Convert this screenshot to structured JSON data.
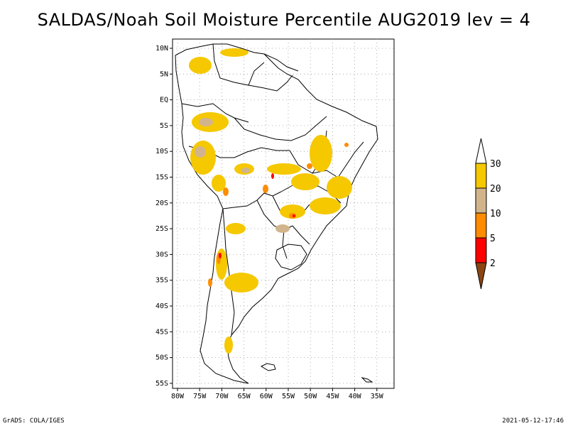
{
  "title": "SALDAS/Noah Soil Moisture Percentile AUG2019 lev = 4",
  "map": {
    "lon_range": [
      -81,
      -32
    ],
    "lat_range": [
      -56,
      12
    ],
    "lat_ticks": [
      "10N",
      "5N",
      "EQ",
      "5S",
      "10S",
      "15S",
      "20S",
      "25S",
      "30S",
      "35S",
      "40S",
      "45S",
      "50S",
      "55S"
    ],
    "lon_ticks": [
      "80W",
      "75W",
      "70W",
      "65W",
      "60W",
      "55W",
      "50W",
      "45W",
      "40W",
      "35W"
    ],
    "grid": true
  },
  "colorbar": {
    "labels": [
      "30",
      "20",
      "10",
      "5",
      "2"
    ],
    "colors": {
      "above_30": "#ffffff",
      "20_30": "#f5c800",
      "10_20": "#d2b48c",
      "5_10": "#ff8c00",
      "2_5": "#ff0000",
      "below_2": "#8b4513"
    }
  },
  "footer": {
    "left": "GrADS: COLA/IGES",
    "right": "2021-05-12-17:46"
  }
}
